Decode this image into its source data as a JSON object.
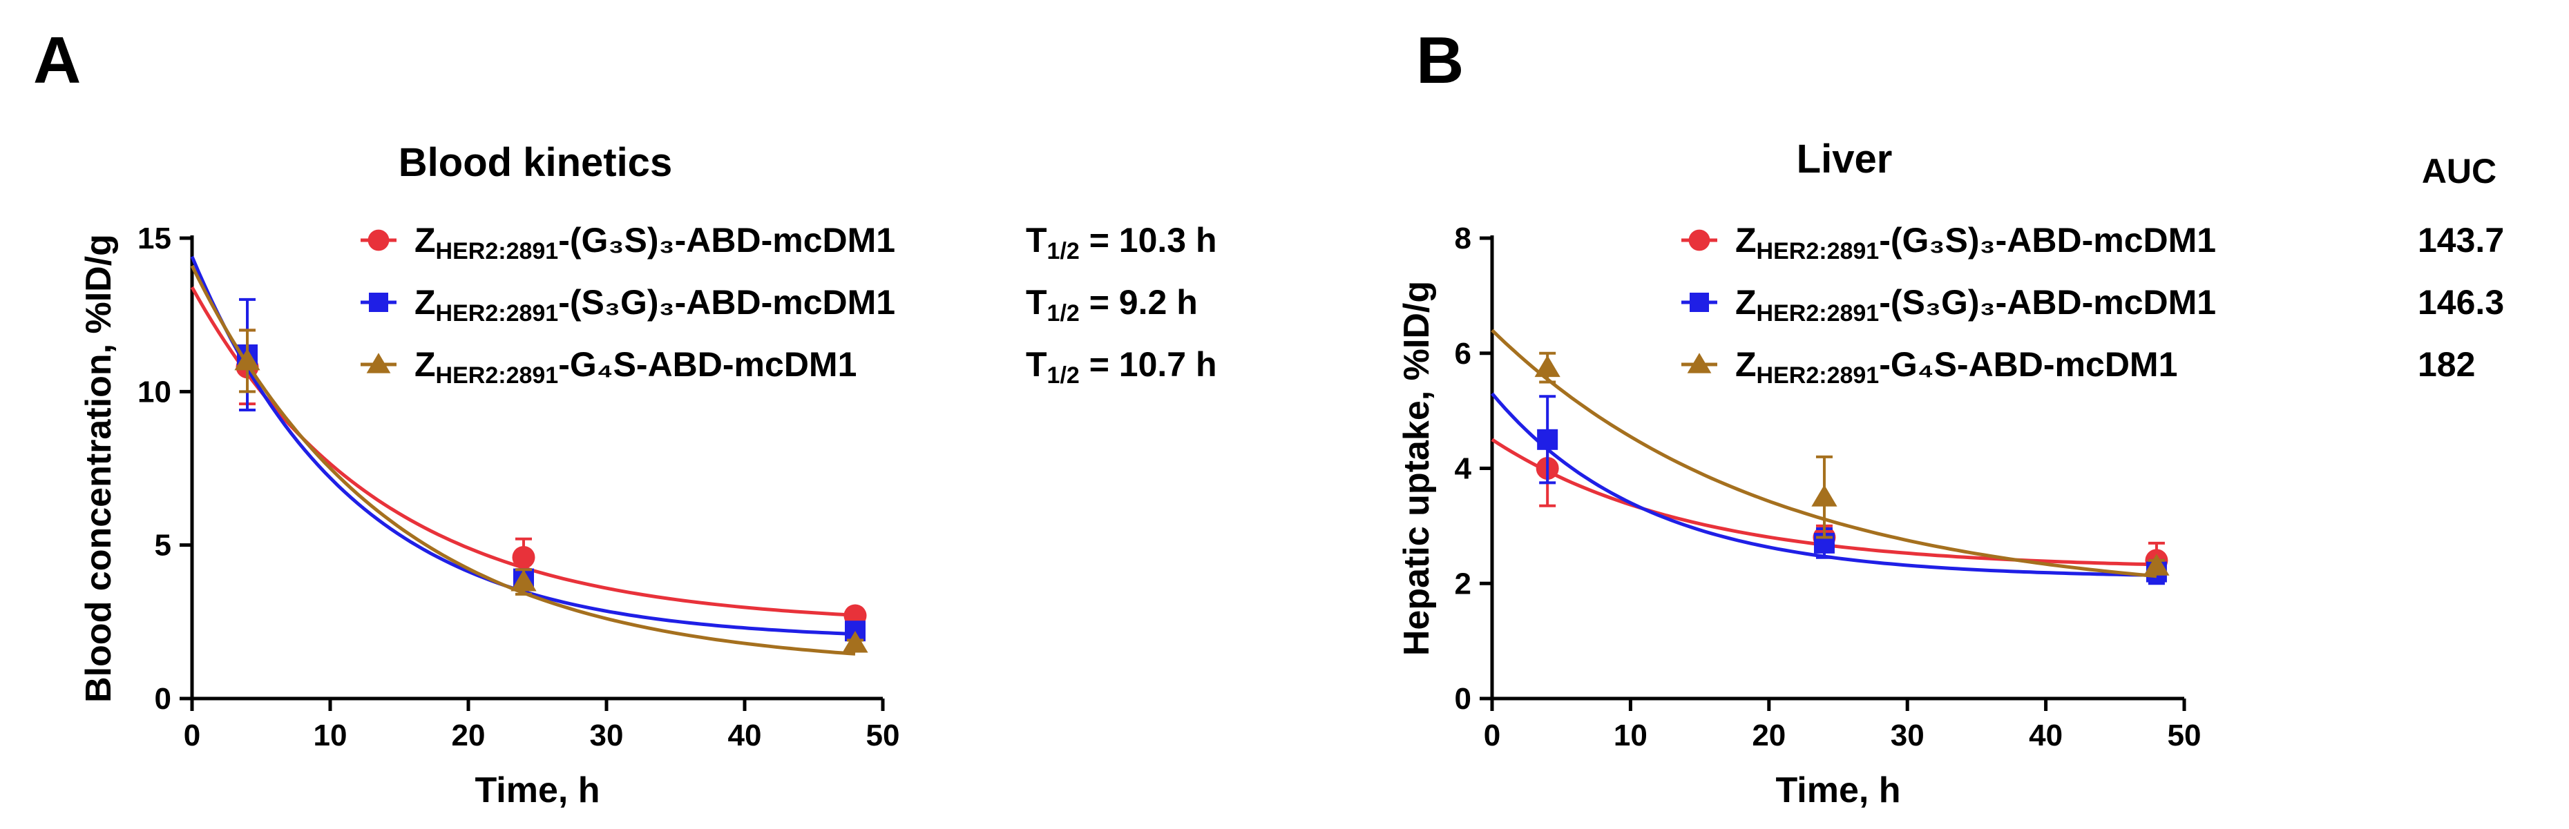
{
  "figure": {
    "panels": [
      {
        "letter": "A",
        "chart_data": {
          "type": "scatter",
          "title": "Blood kinetics",
          "xlabel": "Time, h",
          "ylabel": "Blood concentration, %ID/g",
          "xlim": [
            0,
            50
          ],
          "ylim": [
            0,
            15
          ],
          "xticks": [
            0,
            10,
            20,
            30,
            40,
            50
          ],
          "yticks": [
            0,
            5,
            10,
            15
          ],
          "grid": false,
          "legend_position": "top-right",
          "series": [
            {
              "name_main": "Z",
              "name_sub": "HER2:2891",
              "name_rest": "-(G₃S)₃-ABD-mcDM1",
              "color": "#e8323a",
              "marker": "circle",
              "x": [
                4,
                24,
                48
              ],
              "y": [
                10.8,
                4.6,
                2.7
              ],
              "err": [
                1.2,
                0.6,
                0.15
              ],
              "fit": {
                "model": "one-phase decay",
                "y0": 13.4,
                "plateau": 2.4,
                "k": 0.074
              }
            },
            {
              "name_main": "Z",
              "name_sub": "HER2:2891",
              "name_rest": "-(S₃G)₃-ABD-mcDM1",
              "color": "#1f1fe6",
              "marker": "square",
              "x": [
                4,
                24,
                48
              ],
              "y": [
                11.2,
                3.9,
                2.2
              ],
              "err": [
                1.8,
                0.3,
                0.2
              ],
              "fit": {
                "model": "one-phase decay",
                "y0": 14.4,
                "plateau": 1.9,
                "k": 0.086
              }
            },
            {
              "name_main": "Z",
              "name_sub": "HER2:2891",
              "name_rest": "-G₄S-ABD-mcDM1",
              "color": "#a5701e",
              "marker": "triangle",
              "x": [
                4,
                24,
                48
              ],
              "y": [
                11.0,
                3.8,
                1.8
              ],
              "err": [
                1.0,
                0.4,
                0.1
              ],
              "fit": {
                "model": "one-phase decay",
                "y0": 14.1,
                "plateau": 1.0,
                "k": 0.07
              }
            }
          ],
          "stats": {
            "label_main": "T",
            "label_sub": "1/2",
            "values": [
              "= 10.3 h",
              "= 9.2 h",
              "= 10.7 h"
            ]
          }
        }
      },
      {
        "letter": "B",
        "chart_data": {
          "type": "scatter",
          "title": "Liver",
          "xlabel": "Time, h",
          "ylabel": "Hepatic uptake, %ID/g",
          "xlim": [
            0,
            50
          ],
          "ylim": [
            0,
            8
          ],
          "xticks": [
            0,
            10,
            20,
            30,
            40,
            50
          ],
          "yticks": [
            0,
            2,
            4,
            6,
            8
          ],
          "grid": false,
          "legend_position": "top-right",
          "series": [
            {
              "name_main": "Z",
              "name_sub": "HER2:2891",
              "name_rest": "-(G₃S)₃-ABD-mcDM1",
              "color": "#e8323a",
              "marker": "circle",
              "x": [
                4,
                24,
                48
              ],
              "y": [
                4.0,
                2.8,
                2.4
              ],
              "err": [
                0.65,
                0.2,
                0.3
              ],
              "fit": {
                "model": "one-phase decay",
                "y0": 4.5,
                "plateau": 2.25,
                "k": 0.07
              }
            },
            {
              "name_main": "Z",
              "name_sub": "HER2:2891",
              "name_rest": "-(S₃G)₃-ABD-mcDM1",
              "color": "#1f1fe6",
              "marker": "square",
              "x": [
                4,
                24,
                48
              ],
              "y": [
                4.5,
                2.7,
                2.2
              ],
              "err": [
                0.75,
                0.25,
                0.2
              ],
              "fit": {
                "model": "one-phase decay",
                "y0": 5.3,
                "plateau": 2.1,
                "k": 0.09
              }
            },
            {
              "name_main": "Z",
              "name_sub": "HER2:2891",
              "name_rest": "-G₄S-ABD-mcDM1",
              "color": "#a5701e",
              "marker": "triangle",
              "x": [
                4,
                24,
                48
              ],
              "y": [
                5.75,
                3.5,
                2.3
              ],
              "err": [
                0.25,
                0.7,
                0.1
              ],
              "fit": {
                "model": "one-phase decay",
                "y0": 6.4,
                "plateau": 1.7,
                "k": 0.05
              }
            }
          ],
          "stats": {
            "header": "AUC",
            "values": [
              "143.7",
              "146.3",
              "182"
            ]
          }
        }
      }
    ]
  }
}
